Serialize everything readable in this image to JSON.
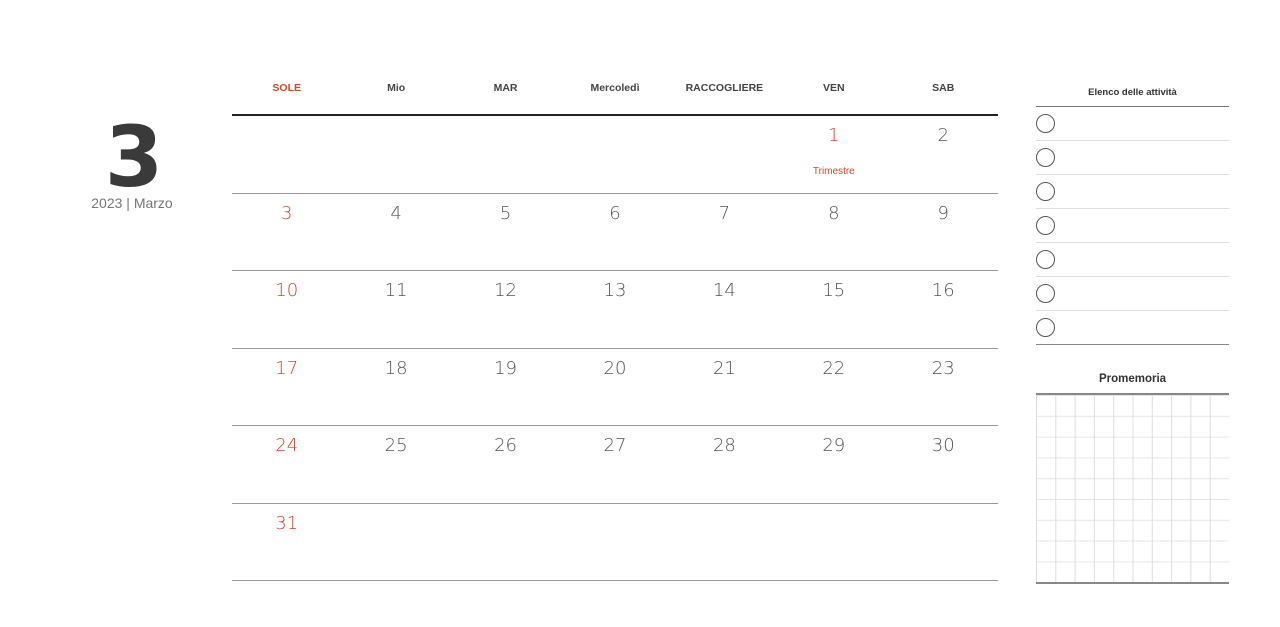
{
  "month_number": "3",
  "subtitle": "2023 | Marzo",
  "weekdays": [
    "SOLE",
    "Mio",
    "MAR",
    "Mercoledì",
    "RACCOGLIERE",
    "VEN",
    "SAB"
  ],
  "weeks": [
    [
      "",
      "",
      "",
      "",
      "",
      "1",
      "2"
    ],
    [
      "3",
      "4",
      "5",
      "6",
      "7",
      "8",
      "9"
    ],
    [
      "10",
      "11",
      "12",
      "13",
      "14",
      "15",
      "16"
    ],
    [
      "17",
      "18",
      "19",
      "20",
      "21",
      "22",
      "23"
    ],
    [
      "24",
      "25",
      "26",
      "27",
      "28",
      "29",
      "30"
    ],
    [
      "31",
      "",
      "",
      "",
      "",
      "",
      ""
    ]
  ],
  "event": {
    "day": "1",
    "label": "Trimestre"
  },
  "tasks": {
    "title": "Elenco delle attività",
    "count": 7
  },
  "memo": {
    "title": "Promemoria"
  },
  "colors": {
    "accent": "#d2462a",
    "text": "#444444"
  }
}
